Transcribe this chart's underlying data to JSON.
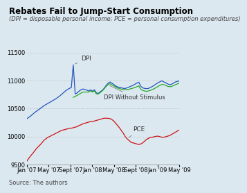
{
  "title": "Rebates Fail to Jump-Start Consumption",
  "subtitle": "(DPI = disposable personal income; PCE = personal consumption expenditures)",
  "source": "Source: The authors",
  "background_color": "#dce8f0",
  "ylim": [
    9500,
    11500
  ],
  "yticks": [
    9500,
    10000,
    10500,
    11000,
    11500
  ],
  "xlabel_ticks": [
    "Jan '07",
    "May '07",
    "Sept '07",
    "Jan '08",
    "May '08",
    "Sept '08",
    "Jan '09",
    "May '09"
  ],
  "dpi_color": "#2255bb",
  "dpi_no_stimulus_color": "#22aa22",
  "pce_color": "#cc1111",
  "dpi_data": [
    10320,
    10345,
    10370,
    10400,
    10430,
    10455,
    10480,
    10505,
    10530,
    10555,
    10575,
    10595,
    10615,
    10635,
    10655,
    10675,
    10700,
    10725,
    10755,
    10785,
    10815,
    10840,
    10860,
    10875,
    11280,
    10760,
    10780,
    10810,
    10835,
    10850,
    10840,
    10830,
    10815,
    10835,
    10810,
    10835,
    10780,
    10770,
    10800,
    10825,
    10860,
    10910,
    10950,
    10975,
    10955,
    10930,
    10905,
    10885,
    10880,
    10870,
    10860,
    10860,
    10870,
    10885,
    10900,
    10915,
    10935,
    10955,
    10970,
    10900,
    10870,
    10860,
    10855,
    10860,
    10875,
    10895,
    10915,
    10940,
    10960,
    10980,
    10995,
    10975,
    10960,
    10940,
    10925,
    10935,
    10955,
    10975,
    10985,
    10995
  ],
  "dpi_no_stimulus_data": [
    null,
    null,
    null,
    null,
    null,
    null,
    null,
    null,
    null,
    null,
    null,
    null,
    null,
    null,
    null,
    null,
    null,
    null,
    null,
    null,
    null,
    null,
    null,
    null,
    10700,
    10715,
    10735,
    10755,
    10775,
    10795,
    10795,
    10795,
    10795,
    10815,
    10795,
    10815,
    10760,
    10760,
    10785,
    10815,
    10850,
    10895,
    10925,
    10945,
    10925,
    10905,
    10885,
    10865,
    10860,
    10845,
    10835,
    10835,
    10835,
    10845,
    10855,
    10865,
    10875,
    10890,
    10905,
    10845,
    10825,
    10815,
    10805,
    10815,
    10825,
    10840,
    10855,
    10875,
    10895,
    10915,
    10930,
    10925,
    10915,
    10895,
    10890,
    10895,
    10910,
    10925,
    10940,
    10955
  ],
  "pce_data": [
    9565,
    9615,
    9660,
    9700,
    9745,
    9790,
    9825,
    9860,
    9900,
    9940,
    9965,
    9990,
    10005,
    10025,
    10040,
    10060,
    10075,
    10095,
    10110,
    10120,
    10128,
    10138,
    10148,
    10150,
    10158,
    10168,
    10178,
    10198,
    10210,
    10228,
    10238,
    10248,
    10258,
    10268,
    10268,
    10278,
    10288,
    10298,
    10308,
    10318,
    10328,
    10328,
    10325,
    10322,
    10305,
    10278,
    10238,
    10198,
    10155,
    10105,
    10058,
    9998,
    9958,
    9928,
    9898,
    9888,
    9878,
    9868,
    9858,
    9868,
    9888,
    9918,
    9948,
    9968,
    9985,
    9988,
    9998,
    10005,
    10008,
    9998,
    9988,
    9988,
    9998,
    10008,
    10018,
    10038,
    10058,
    10078,
    10098,
    10118
  ],
  "n_points": 80,
  "title_fontsize": 8.5,
  "subtitle_fontsize": 6.0,
  "tick_fontsize": 6.0,
  "label_fontsize": 6.5,
  "source_fontsize": 6.0
}
